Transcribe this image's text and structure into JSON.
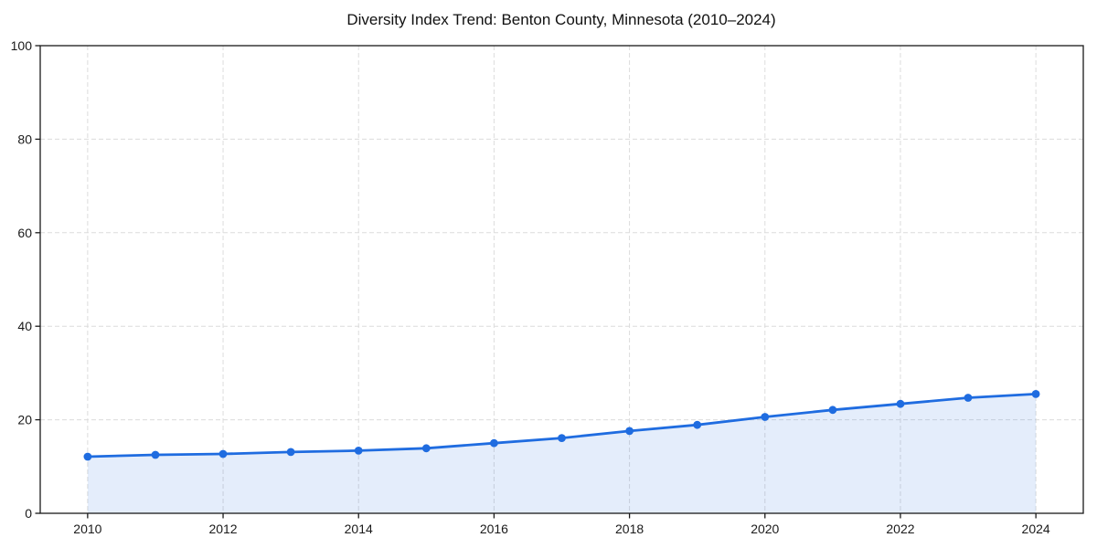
{
  "chart_data": {
    "type": "area",
    "title": "Diversity Index Trend: Benton County, Minnesota (2010–2024)",
    "series_label": "Diversity Index",
    "x": [
      2010,
      2011,
      2012,
      2013,
      2014,
      2015,
      2016,
      2017,
      2018,
      2019,
      2020,
      2021,
      2022,
      2023,
      2024
    ],
    "values": [
      12.1,
      12.5,
      12.7,
      13.1,
      13.4,
      13.9,
      15.0,
      16.1,
      17.6,
      18.9,
      20.6,
      22.1,
      23.4,
      24.7,
      25.5
    ],
    "xlabel": "",
    "ylabel": "",
    "xlim": [
      2009.3,
      2024.7
    ],
    "ylim": [
      0,
      100
    ],
    "xticks": [
      2010,
      2012,
      2014,
      2016,
      2018,
      2020,
      2022,
      2024
    ],
    "yticks": [
      0,
      20,
      40,
      60,
      80,
      100
    ],
    "grid": true,
    "grid_style": "dashed",
    "legend": false,
    "colors": {
      "line": "#1f6ce0",
      "marker": "#1f6ce0",
      "fill": "#1f6ce0",
      "fill_opacity": 0.12,
      "grid": "#dcdcdc",
      "axis": "#1a1a1a",
      "tick_label": "#1a1a1a",
      "title": "#111111",
      "background": "#ffffff"
    }
  }
}
